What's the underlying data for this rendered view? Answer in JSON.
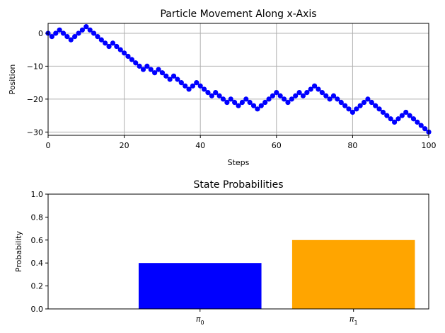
{
  "chart_data": [
    {
      "type": "line",
      "title": "Particle Movement Along x-Axis",
      "xlabel": "Steps",
      "ylabel": "Position",
      "xlim": [
        0,
        100
      ],
      "ylim": [
        -31,
        3
      ],
      "xticks": [
        0,
        20,
        40,
        60,
        80,
        100
      ],
      "yticks": [
        0,
        -10,
        -20,
        -30
      ],
      "grid": true,
      "color": "#0000ff",
      "marker": "circle",
      "x": [
        0,
        1,
        2,
        3,
        4,
        5,
        6,
        7,
        8,
        9,
        10,
        11,
        12,
        13,
        14,
        15,
        16,
        17,
        18,
        19,
        20,
        21,
        22,
        23,
        24,
        25,
        26,
        27,
        28,
        29,
        30,
        31,
        32,
        33,
        34,
        35,
        36,
        37,
        38,
        39,
        40,
        41,
        42,
        43,
        44,
        45,
        46,
        47,
        48,
        49,
        50,
        51,
        52,
        53,
        54,
        55,
        56,
        57,
        58,
        59,
        60,
        61,
        62,
        63,
        64,
        65,
        66,
        67,
        68,
        69,
        70,
        71,
        72,
        73,
        74,
        75,
        76,
        77,
        78,
        79,
        80,
        81,
        82,
        83,
        84,
        85,
        86,
        87,
        88,
        89,
        90,
        91,
        92,
        93,
        94,
        95,
        96,
        97,
        98,
        99,
        100
      ],
      "y": [
        0,
        -1,
        0,
        1,
        0,
        -1,
        -2,
        -1,
        0,
        1,
        2,
        1,
        0,
        -1,
        -2,
        -3,
        -4,
        -3,
        -4,
        -5,
        -6,
        -7,
        -8,
        -9,
        -10,
        -11,
        -10,
        -11,
        -12,
        -11,
        -12,
        -13,
        -14,
        -13,
        -14,
        -15,
        -16,
        -17,
        -16,
        -15,
        -16,
        -17,
        -18,
        -19,
        -18,
        -19,
        -20,
        -21,
        -20,
        -21,
        -22,
        -21,
        -20,
        -21,
        -22,
        -23,
        -22,
        -21,
        -20,
        -19,
        -18,
        -19,
        -20,
        -21,
        -20,
        -19,
        -18,
        -19,
        -18,
        -17,
        -16,
        -17,
        -18,
        -19,
        -20,
        -19,
        -20,
        -21,
        -22,
        -23,
        -24,
        -23,
        -22,
        -21,
        -20,
        -21,
        -22,
        -23,
        -24,
        -25,
        -26,
        -27,
        -26,
        -25,
        -24,
        -25,
        -26,
        -27,
        -28,
        -29,
        -30
      ]
    },
    {
      "type": "bar",
      "title": "State Probabilities",
      "xlabel": "",
      "ylabel": "Probability",
      "ylim": [
        0,
        1
      ],
      "yticks": [
        0.0,
        0.2,
        0.4,
        0.6,
        0.8,
        1.0
      ],
      "yticklabels": [
        "0.0",
        "0.2",
        "0.4",
        "0.6",
        "0.8",
        "1.0"
      ],
      "grid": false,
      "categories": [
        {
          "base": "π",
          "sub": "0"
        },
        {
          "base": "π",
          "sub": "1"
        }
      ],
      "values": [
        0.4,
        0.6
      ],
      "colors": [
        "#0000ff",
        "#ffa500"
      ]
    }
  ]
}
